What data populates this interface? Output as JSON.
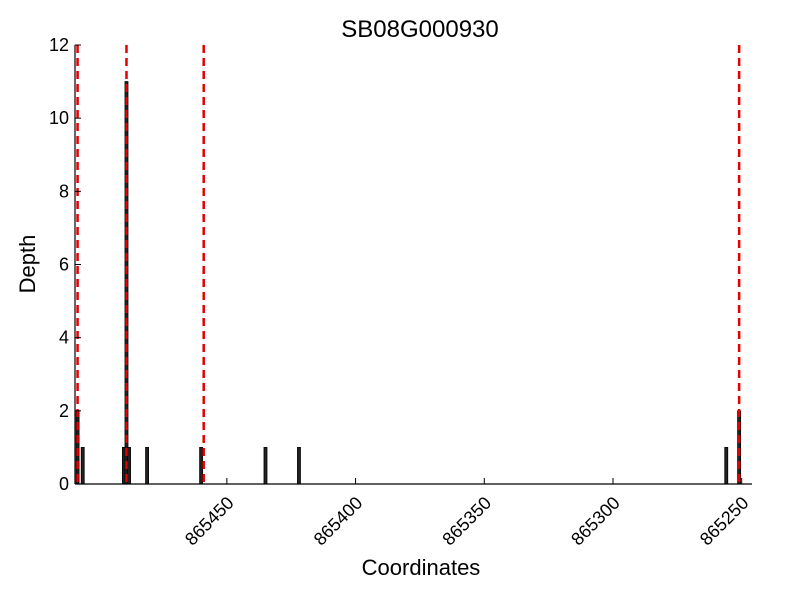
{
  "chart_data": {
    "type": "bar",
    "title": "SB08G000930",
    "xlabel": "Coordinates",
    "ylabel": "Depth",
    "xlim": [
      865509,
      865246
    ],
    "ylim": [
      0,
      12
    ],
    "x_reversed": true,
    "x_ticks": [
      865450,
      865400,
      865350,
      865300,
      865250
    ],
    "y_ticks": [
      0,
      2,
      4,
      6,
      8,
      10,
      12
    ],
    "bars": [
      {
        "x": 865508,
        "value": 2
      },
      {
        "x": 865506,
        "value": 1
      },
      {
        "x": 865490,
        "value": 1
      },
      {
        "x": 865489,
        "value": 11
      },
      {
        "x": 865488,
        "value": 1
      },
      {
        "x": 865481,
        "value": 1
      },
      {
        "x": 865460,
        "value": 1
      },
      {
        "x": 865435,
        "value": 1
      },
      {
        "x": 865422,
        "value": 1
      },
      {
        "x": 865256,
        "value": 1
      },
      {
        "x": 865251,
        "value": 2
      }
    ],
    "reference_lines": [
      865508,
      865489,
      865459,
      865251
    ],
    "colors": {
      "bar_fill": "#222222",
      "bar_edge": "#000000",
      "reference_line": "#e60000",
      "axis": "#000000"
    },
    "grid": false,
    "legend": "none"
  }
}
